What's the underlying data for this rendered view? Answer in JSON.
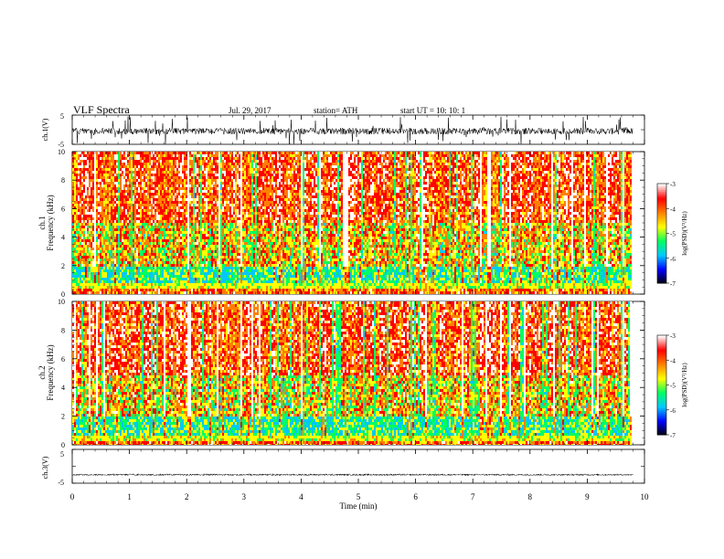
{
  "header": {
    "title": "VLF  Spectra",
    "date": "Jul.  29, 2017",
    "station": "station= ATH",
    "start": "start  UT  =    10: 10: 1"
  },
  "chart_data": [
    {
      "type": "line",
      "panel": "ch1-waveform",
      "ylabel": "ch.1(V)",
      "ylim": [
        -5,
        5
      ],
      "yticks": [
        "5",
        "-5"
      ],
      "xlim": [
        0,
        10
      ],
      "series": [
        {
          "values_description_baseline": -0.5
        }
      ],
      "grid": false
    },
    {
      "type": "heatmap",
      "panel": "ch1-spectrogram",
      "ylabel_line1": "ch.1",
      "ylabel_line2": "Frequency  (kHz)",
      "ylim": [
        0,
        10
      ],
      "yticks": [
        "0",
        "2",
        "4",
        "6",
        "8",
        "10"
      ],
      "xlim": [
        0,
        10
      ],
      "data_end_min": 9.8,
      "colorbar": {
        "label": "log(PSD)(V²/Hz)",
        "range": [
          -7,
          -3
        ],
        "ticks": [
          "-3",
          "-4",
          "-5",
          "-6",
          "-7"
        ],
        "colors": [
          "#000000",
          "#0000ff",
          "#00c8ff",
          "#00ff60",
          "#ffff00",
          "#ff8000",
          "#ff0000",
          "#ffffff"
        ]
      }
    },
    {
      "type": "heatmap",
      "panel": "ch2-spectrogram",
      "ylabel_line1": "ch.2",
      "ylabel_line2": "Frequency  (kHz)",
      "ylim": [
        0,
        10
      ],
      "yticks": [
        "0",
        "2",
        "4",
        "6",
        "8",
        "10"
      ],
      "xlim": [
        0,
        10
      ],
      "data_end_min": 9.8,
      "colorbar": {
        "label": "log(PSD)(V²/Hz)",
        "range": [
          -7,
          -3
        ],
        "ticks": [
          "-3",
          "-4",
          "-5",
          "-6",
          "-7"
        ],
        "colors": [
          "#000000",
          "#0000ff",
          "#00c8ff",
          "#00ff60",
          "#ffff00",
          "#ff8000",
          "#ff0000",
          "#ffffff"
        ]
      }
    },
    {
      "type": "line",
      "panel": "ch3-waveform",
      "ylabel": "ch.3(V)",
      "ylim": [
        -5,
        5
      ],
      "yticks": [
        "5",
        "-5"
      ],
      "xlim": [
        0,
        10
      ],
      "series": [
        {
          "values_description_baseline": -2.5
        }
      ],
      "grid": false
    }
  ],
  "x_axis": {
    "label": "Time  (min)",
    "ticks": [
      "0",
      "1",
      "2",
      "3",
      "4",
      "5",
      "6",
      "7",
      "8",
      "9",
      "10"
    ]
  }
}
